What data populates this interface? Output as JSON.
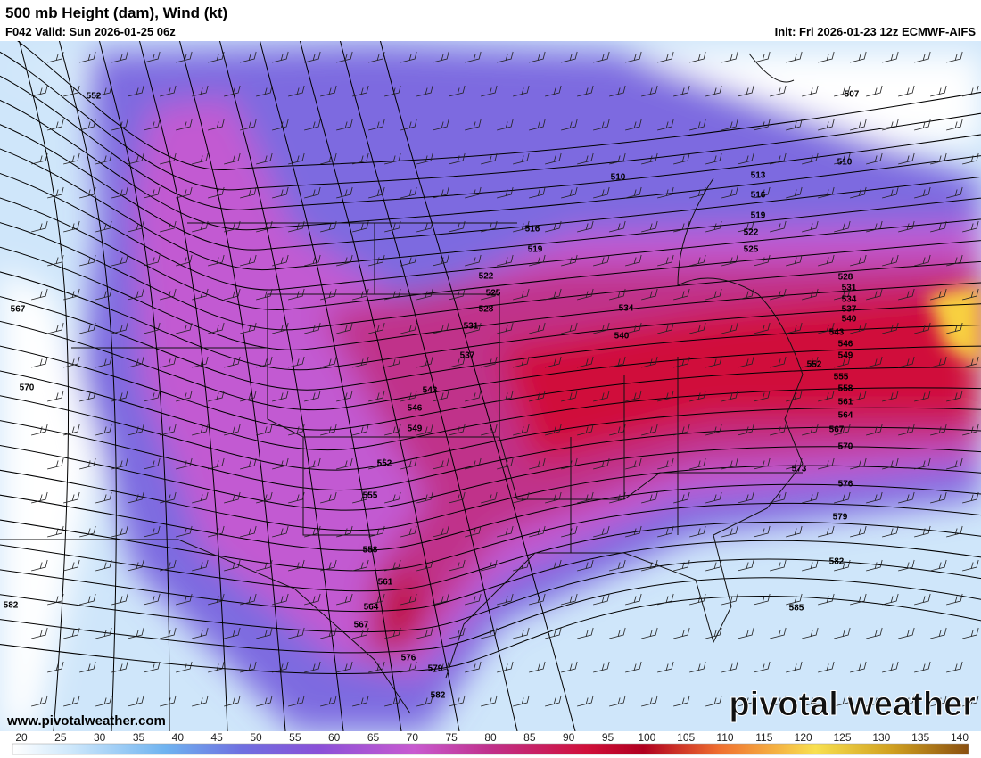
{
  "header": {
    "title": "500 mb Height (dam), Wind (kt)",
    "valid": "F042 Valid: Sun 2026-01-25 06z",
    "init": "Init: Fri 2026-01-23 12z ECMWF-AIFS"
  },
  "map": {
    "contour_labels": [
      "552",
      "567",
      "570",
      "582",
      "507",
      "510",
      "510",
      "513",
      "516",
      "519",
      "522",
      "525",
      "516",
      "519",
      "522",
      "525",
      "528",
      "531",
      "534",
      "537",
      "540",
      "543",
      "546",
      "549",
      "552",
      "555",
      "558",
      "561",
      "564",
      "567",
      "576",
      "579",
      "582",
      "573",
      "576",
      "579",
      "582",
      "585",
      "528",
      "531",
      "534",
      "537",
      "540",
      "543",
      "546",
      "549",
      "552",
      "555",
      "558",
      "561",
      "564",
      "567",
      "570"
    ]
  },
  "colorbar": {
    "ticks": [
      20,
      25,
      30,
      35,
      40,
      45,
      50,
      55,
      60,
      65,
      70,
      75,
      80,
      85,
      90,
      95,
      100,
      105,
      110,
      115,
      120,
      125,
      130,
      135,
      140
    ]
  },
  "footer": {
    "url": "www.pivotalweather.com",
    "logo": "pivotal weather"
  }
}
